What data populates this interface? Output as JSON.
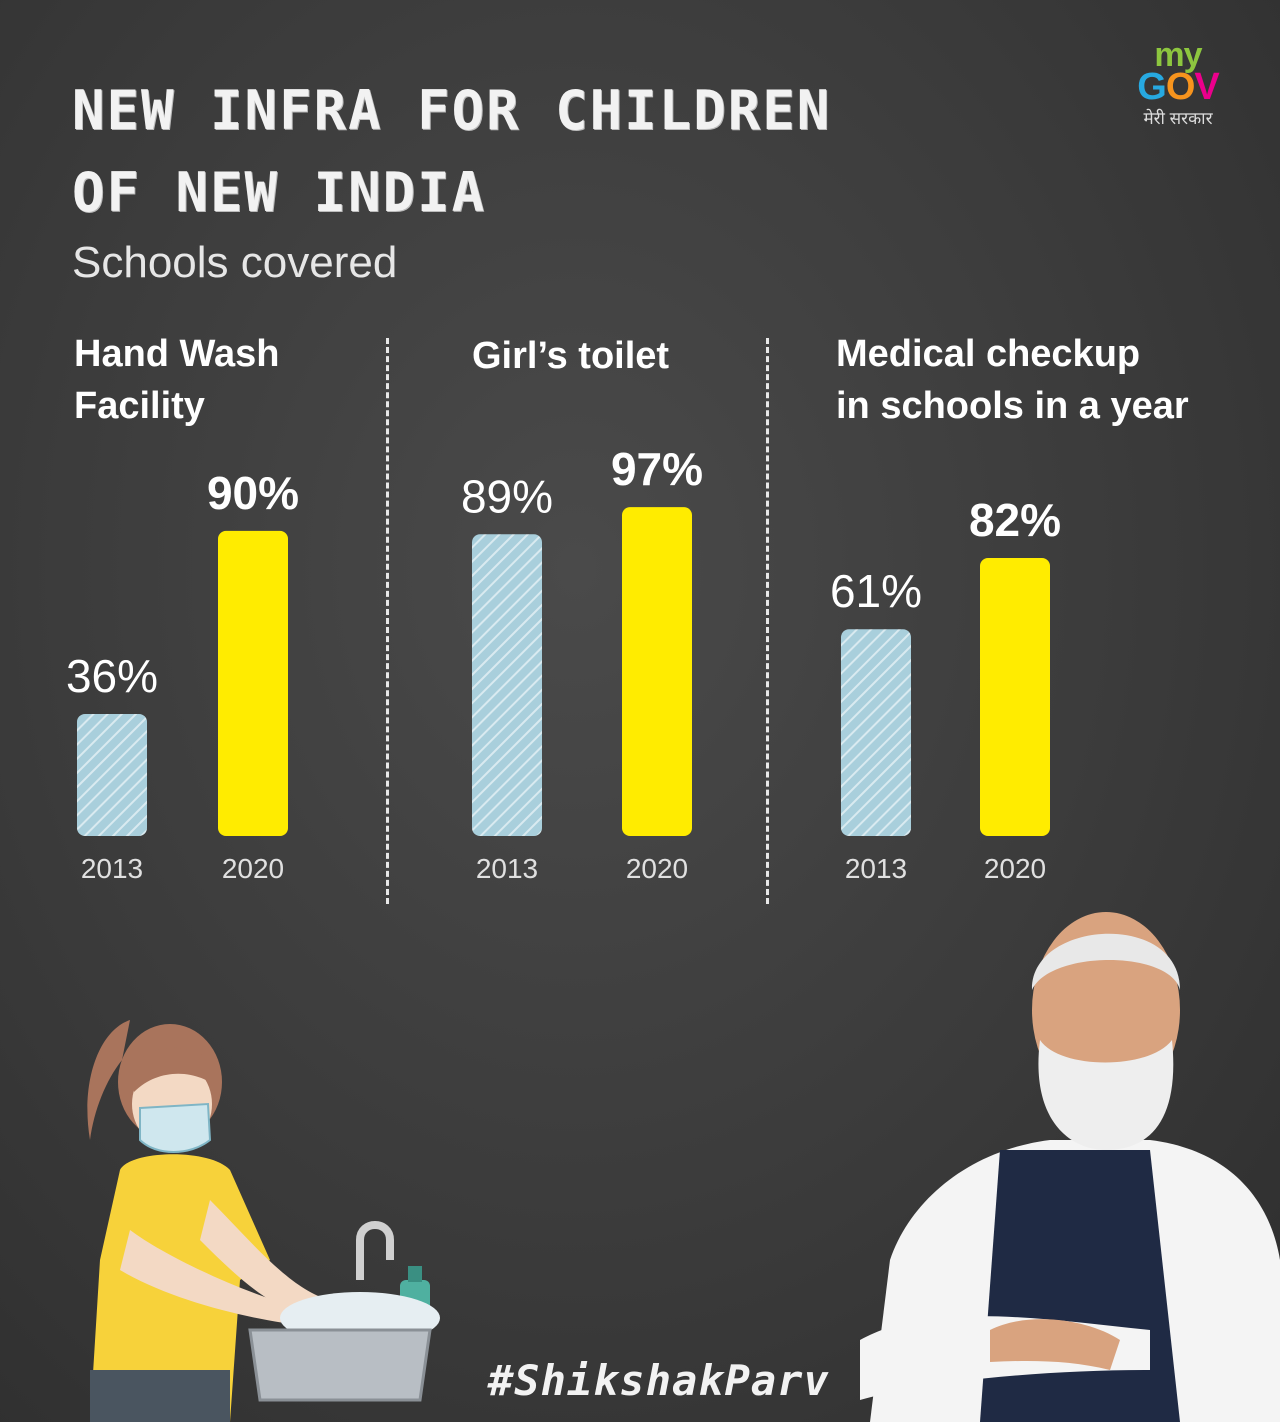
{
  "title_line1": "NEW INFRA FOR CHILDREN",
  "title_line2": "OF NEW INDIA",
  "subtitle": "Schools covered",
  "logo": {
    "my": "my",
    "gov": "GOV",
    "tagline": "मेरी सरकार"
  },
  "hashtag": "#ShikshakParv",
  "colors": {
    "bar_2013": "#a9cfdc",
    "bar_2020": "#ffec00",
    "background": "#3d3d3d"
  },
  "chart_data": [
    {
      "type": "bar",
      "title": "Hand Wash Facility",
      "title_lines": [
        "Hand Wash",
        "Facility"
      ],
      "categories": [
        "2013",
        "2020"
      ],
      "values": [
        36,
        90
      ],
      "labels": [
        "36%",
        "90%"
      ],
      "ylim": [
        0,
        100
      ]
    },
    {
      "type": "bar",
      "title": "Girl’s toilet",
      "title_lines": [
        "Girl’s toilet"
      ],
      "categories": [
        "2013",
        "2020"
      ],
      "values": [
        89,
        97
      ],
      "labels": [
        "89%",
        "97%"
      ],
      "ylim": [
        0,
        100
      ]
    },
    {
      "type": "bar",
      "title": "Medical checkup in schools in a year",
      "title_lines": [
        "Medical checkup",
        "in schools in a year"
      ],
      "categories": [
        "2013",
        "2020"
      ],
      "values": [
        61,
        82
      ],
      "labels": [
        "61%",
        "82%"
      ],
      "ylim": [
        0,
        100
      ]
    }
  ],
  "illustrations": {
    "left": "girl-washing-hands-icon",
    "right": "person-portrait-icon"
  }
}
